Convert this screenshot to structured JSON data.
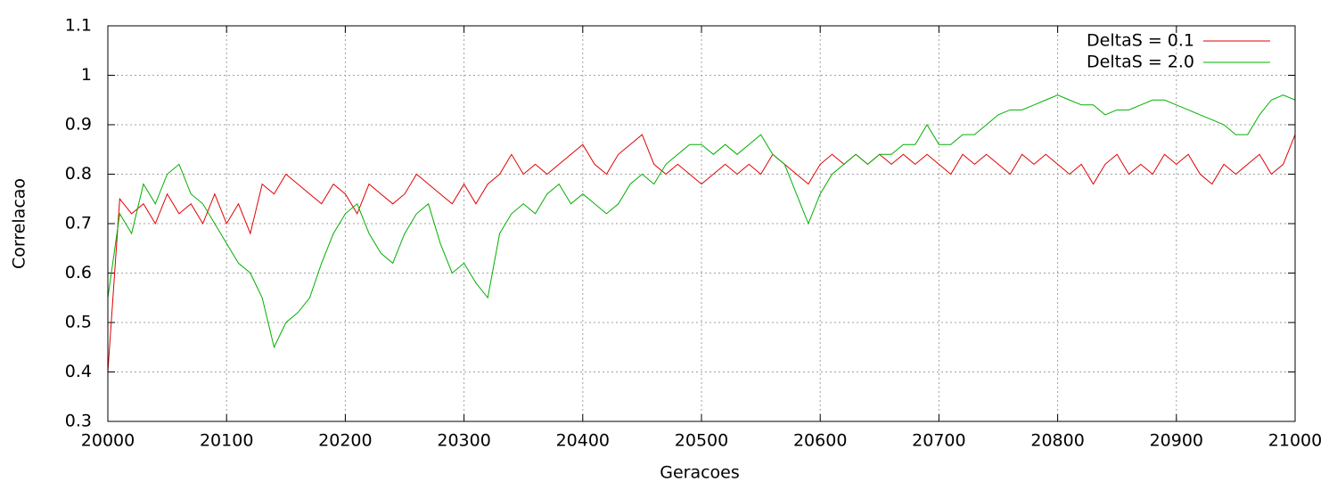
{
  "chart_data": {
    "type": "line",
    "x_label": "Geracoes",
    "y_label": "Correlacao",
    "x": [
      20000,
      20010,
      20020,
      20030,
      20040,
      20050,
      20060,
      20070,
      20080,
      20090,
      20100,
      20110,
      20120,
      20130,
      20140,
      20150,
      20160,
      20170,
      20180,
      20190,
      20200,
      20210,
      20220,
      20230,
      20240,
      20250,
      20260,
      20270,
      20280,
      20290,
      20300,
      20310,
      20320,
      20330,
      20340,
      20350,
      20360,
      20370,
      20380,
      20390,
      20400,
      20410,
      20420,
      20430,
      20440,
      20450,
      20460,
      20470,
      20480,
      20490,
      20500,
      20510,
      20520,
      20530,
      20540,
      20550,
      20560,
      20570,
      20580,
      20590,
      20600,
      20610,
      20620,
      20630,
      20640,
      20650,
      20660,
      20670,
      20680,
      20690,
      20700,
      20710,
      20720,
      20730,
      20740,
      20750,
      20760,
      20770,
      20780,
      20790,
      20800,
      20810,
      20820,
      20830,
      20840,
      20850,
      20860,
      20870,
      20880,
      20890,
      20900,
      20910,
      20920,
      20930,
      20940,
      20950,
      20960,
      20970,
      20980,
      20990,
      21000
    ],
    "series": [
      {
        "name": "DeltaS = 0.1",
        "color": "#e00000",
        "values": [
          0.4,
          0.75,
          0.72,
          0.74,
          0.7,
          0.76,
          0.72,
          0.74,
          0.7,
          0.76,
          0.7,
          0.74,
          0.68,
          0.78,
          0.76,
          0.8,
          0.78,
          0.76,
          0.74,
          0.78,
          0.76,
          0.72,
          0.78,
          0.76,
          0.74,
          0.76,
          0.8,
          0.78,
          0.76,
          0.74,
          0.78,
          0.74,
          0.78,
          0.8,
          0.84,
          0.8,
          0.82,
          0.8,
          0.82,
          0.84,
          0.86,
          0.82,
          0.8,
          0.84,
          0.86,
          0.88,
          0.82,
          0.8,
          0.82,
          0.8,
          0.78,
          0.8,
          0.82,
          0.8,
          0.82,
          0.8,
          0.84,
          0.82,
          0.8,
          0.78,
          0.82,
          0.84,
          0.82,
          0.84,
          0.82,
          0.84,
          0.82,
          0.84,
          0.82,
          0.84,
          0.82,
          0.8,
          0.84,
          0.82,
          0.84,
          0.82,
          0.8,
          0.84,
          0.82,
          0.84,
          0.82,
          0.8,
          0.82,
          0.78,
          0.82,
          0.84,
          0.8,
          0.82,
          0.8,
          0.84,
          0.82,
          0.84,
          0.8,
          0.78,
          0.82,
          0.8,
          0.82,
          0.84,
          0.8,
          0.82,
          0.88
        ]
      },
      {
        "name": "DeltaS = 2.0",
        "color": "#00b000",
        "values": [
          0.55,
          0.72,
          0.68,
          0.78,
          0.74,
          0.8,
          0.82,
          0.76,
          0.74,
          0.7,
          0.66,
          0.62,
          0.6,
          0.55,
          0.45,
          0.5,
          0.52,
          0.55,
          0.62,
          0.68,
          0.72,
          0.74,
          0.68,
          0.64,
          0.62,
          0.68,
          0.72,
          0.74,
          0.66,
          0.6,
          0.62,
          0.58,
          0.55,
          0.68,
          0.72,
          0.74,
          0.72,
          0.76,
          0.78,
          0.74,
          0.76,
          0.74,
          0.72,
          0.74,
          0.78,
          0.8,
          0.78,
          0.82,
          0.84,
          0.86,
          0.86,
          0.84,
          0.86,
          0.84,
          0.86,
          0.88,
          0.84,
          0.82,
          0.76,
          0.7,
          0.76,
          0.8,
          0.82,
          0.84,
          0.82,
          0.84,
          0.84,
          0.86,
          0.86,
          0.9,
          0.86,
          0.86,
          0.88,
          0.88,
          0.9,
          0.92,
          0.93,
          0.93,
          0.94,
          0.95,
          0.96,
          0.95,
          0.94,
          0.94,
          0.92,
          0.93,
          0.93,
          0.94,
          0.95,
          0.95,
          0.94,
          0.93,
          0.92,
          0.91,
          0.9,
          0.88,
          0.88,
          0.92,
          0.95,
          0.96,
          0.95
        ]
      }
    ],
    "xlim": [
      20000,
      21000
    ],
    "xticks": [
      20000,
      20100,
      20200,
      20300,
      20400,
      20500,
      20600,
      20700,
      20800,
      20900,
      21000
    ],
    "ylim": [
      0.3,
      1.1
    ],
    "yticks": [
      0.3,
      0.4,
      0.5,
      0.6,
      0.7,
      0.8,
      0.9,
      1,
      1.1
    ],
    "grid": true,
    "legend": "top-right"
  }
}
